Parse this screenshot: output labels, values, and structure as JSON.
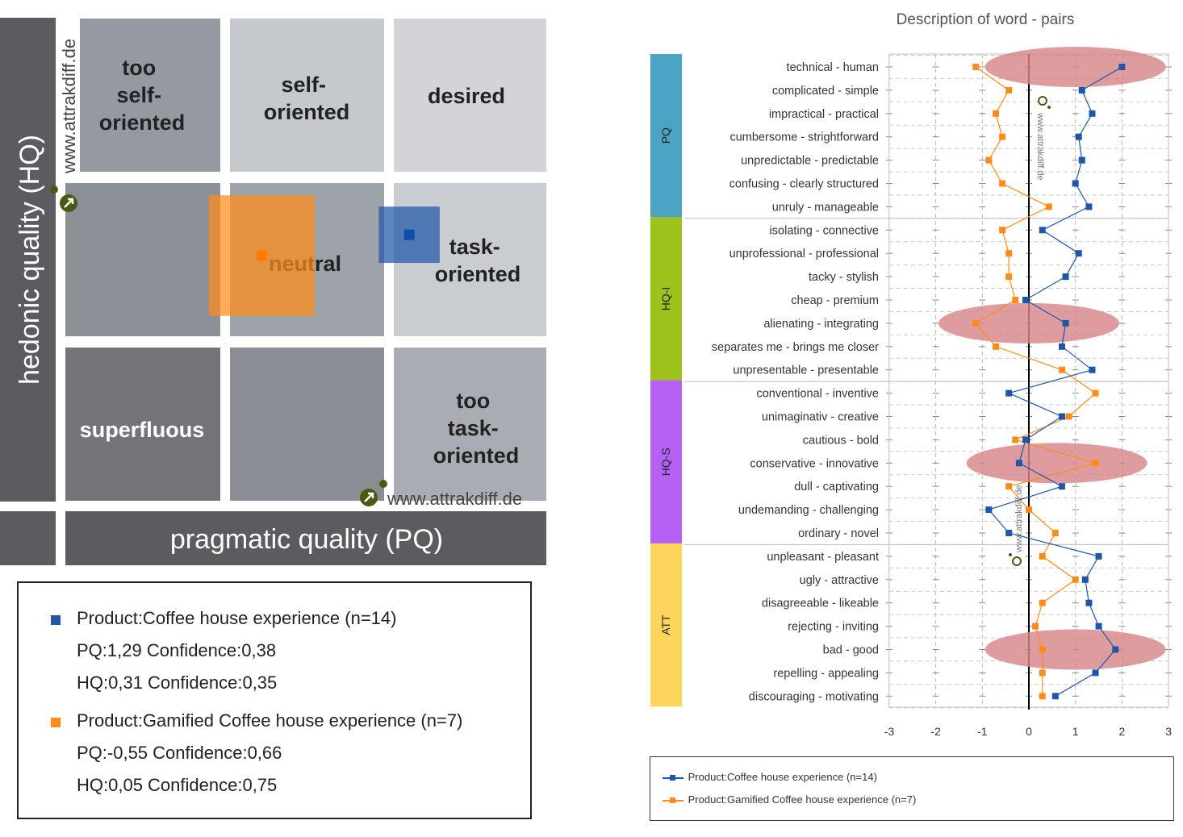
{
  "colors": {
    "series1": "#1f56a7",
    "series2": "#ff8c1a",
    "highlight": "#d7868a",
    "pq_band": "#4ba4c3",
    "hqi_band": "#9dc21b",
    "hqs_band": "#b561f5",
    "att_band": "#fdd55c",
    "axis_dark": "#5a5c60",
    "logo": "#4a5a12"
  },
  "portfolio": {
    "y_axis_label": "hedonic quality (HQ)",
    "x_axis_label": "pragmatic quality (PQ)",
    "watermark_top": "www.attrakdiff.de",
    "watermark_bottom": "www.attrakdiff.de",
    "cells": {
      "too_self_oriented": [
        "too",
        "self-",
        "oriented"
      ],
      "self_oriented": [
        "self-",
        "oriented"
      ],
      "desired": [
        "desired"
      ],
      "neutral": [
        "neutral"
      ],
      "task_oriented": [
        "task-",
        "oriented"
      ],
      "superfluous": [
        "superfluous"
      ],
      "too_task_oriented": [
        "too",
        "task-",
        "oriented"
      ]
    }
  },
  "legend": {
    "items": [
      {
        "label": "Product:Coffee house experience (n=14)",
        "pq": "PQ:1,29 Confidence:0,38",
        "hq": "HQ:0,31 Confidence:0,35"
      },
      {
        "label": "Product:Gamified Coffee house experience (n=7)",
        "pq": "PQ:-0,55 Confidence:0,66",
        "hq": "HQ:0,05 Confidence:0,75"
      }
    ]
  },
  "profile_watermark": "www.attrakdiff.de",
  "chart_data": [
    {
      "type": "scatter",
      "description_ref": "portfolio",
      "xlabel": "pragmatic quality (PQ)",
      "ylabel": "hedonic quality (HQ)",
      "xlim": [
        -3,
        3
      ],
      "ylim": [
        -3,
        3
      ],
      "series": [
        {
          "name": "Product:Coffee house experience (n=14)",
          "x": 1.29,
          "y": 0.31,
          "x_conf": 0.38,
          "y_conf": 0.35
        },
        {
          "name": "Product:Gamified Coffee house experience (n=7)",
          "x": -0.55,
          "y": 0.05,
          "x_conf": 0.66,
          "y_conf": 0.75
        }
      ]
    },
    {
      "type": "line",
      "title": "Description of word - pairs",
      "xlim": [
        -3,
        3
      ],
      "x_ticks": [
        "-3",
        "-2",
        "-1",
        "0",
        "1",
        "2",
        "3"
      ],
      "groups": [
        {
          "name": "PQ",
          "start": 0,
          "end": 6
        },
        {
          "name": "HQ-I",
          "start": 7,
          "end": 13
        },
        {
          "name": "HQ-S",
          "start": 14,
          "end": 20
        },
        {
          "name": "ATT",
          "start": 21,
          "end": 27
        }
      ],
      "categories": [
        "technical - human",
        "complicated - simple",
        "impractical - practical",
        "cumbersome - strightforward",
        "unpredictable - predictable",
        "confusing - clearly structured",
        "unruly - manageable",
        "isolating - connective",
        "unprofessional - professional",
        "tacky - stylish",
        "cheap - premium",
        "alienating - integrating",
        "separates me - brings me closer",
        "unpresentable - presentable",
        "conventional - inventive",
        "unimaginativ - creative",
        "cautious - bold",
        "conservative - innovative",
        "dull - captivating",
        "undemanding - challenging",
        "ordinary - novel",
        "unpleasant - pleasant",
        "ugly - attractive",
        "disagreeable - likeable",
        "rejecting - inviting",
        "bad - good",
        "repelling - appealing",
        "discouraging - motivating"
      ],
      "series": [
        {
          "name": "Product:Coffee house experience (n=14)",
          "values": [
            2.0,
            1.14,
            1.36,
            1.07,
            1.14,
            1.0,
            1.29,
            0.29,
            1.07,
            0.79,
            -0.07,
            0.79,
            0.71,
            1.36,
            -0.43,
            0.71,
            -0.07,
            -0.21,
            0.71,
            -0.86,
            -0.43,
            1.5,
            1.21,
            1.29,
            1.5,
            1.86,
            1.43,
            0.57
          ]
        },
        {
          "name": "Product:Gamified Coffee house experience (n=7)",
          "values": [
            -1.14,
            -0.43,
            -0.71,
            -0.57,
            -0.86,
            -0.57,
            0.43,
            -0.57,
            -0.43,
            -0.43,
            -0.29,
            -1.14,
            -0.71,
            0.71,
            1.43,
            0.86,
            -0.29,
            1.43,
            -0.43,
            0.0,
            0.57,
            0.29,
            1.0,
            0.29,
            0.14,
            0.29,
            0.29,
            0.29
          ]
        }
      ],
      "highlighted_pairs": [
        {
          "pair": "technical - human",
          "center_x": 1.0
        },
        {
          "pair": "alienating - integrating",
          "center_x": 0.0
        },
        {
          "pair": "conservative - innovative",
          "center_x": 0.6
        },
        {
          "pair": "bad - good",
          "center_x": 1.0
        }
      ],
      "legend_position": "bottom"
    }
  ]
}
